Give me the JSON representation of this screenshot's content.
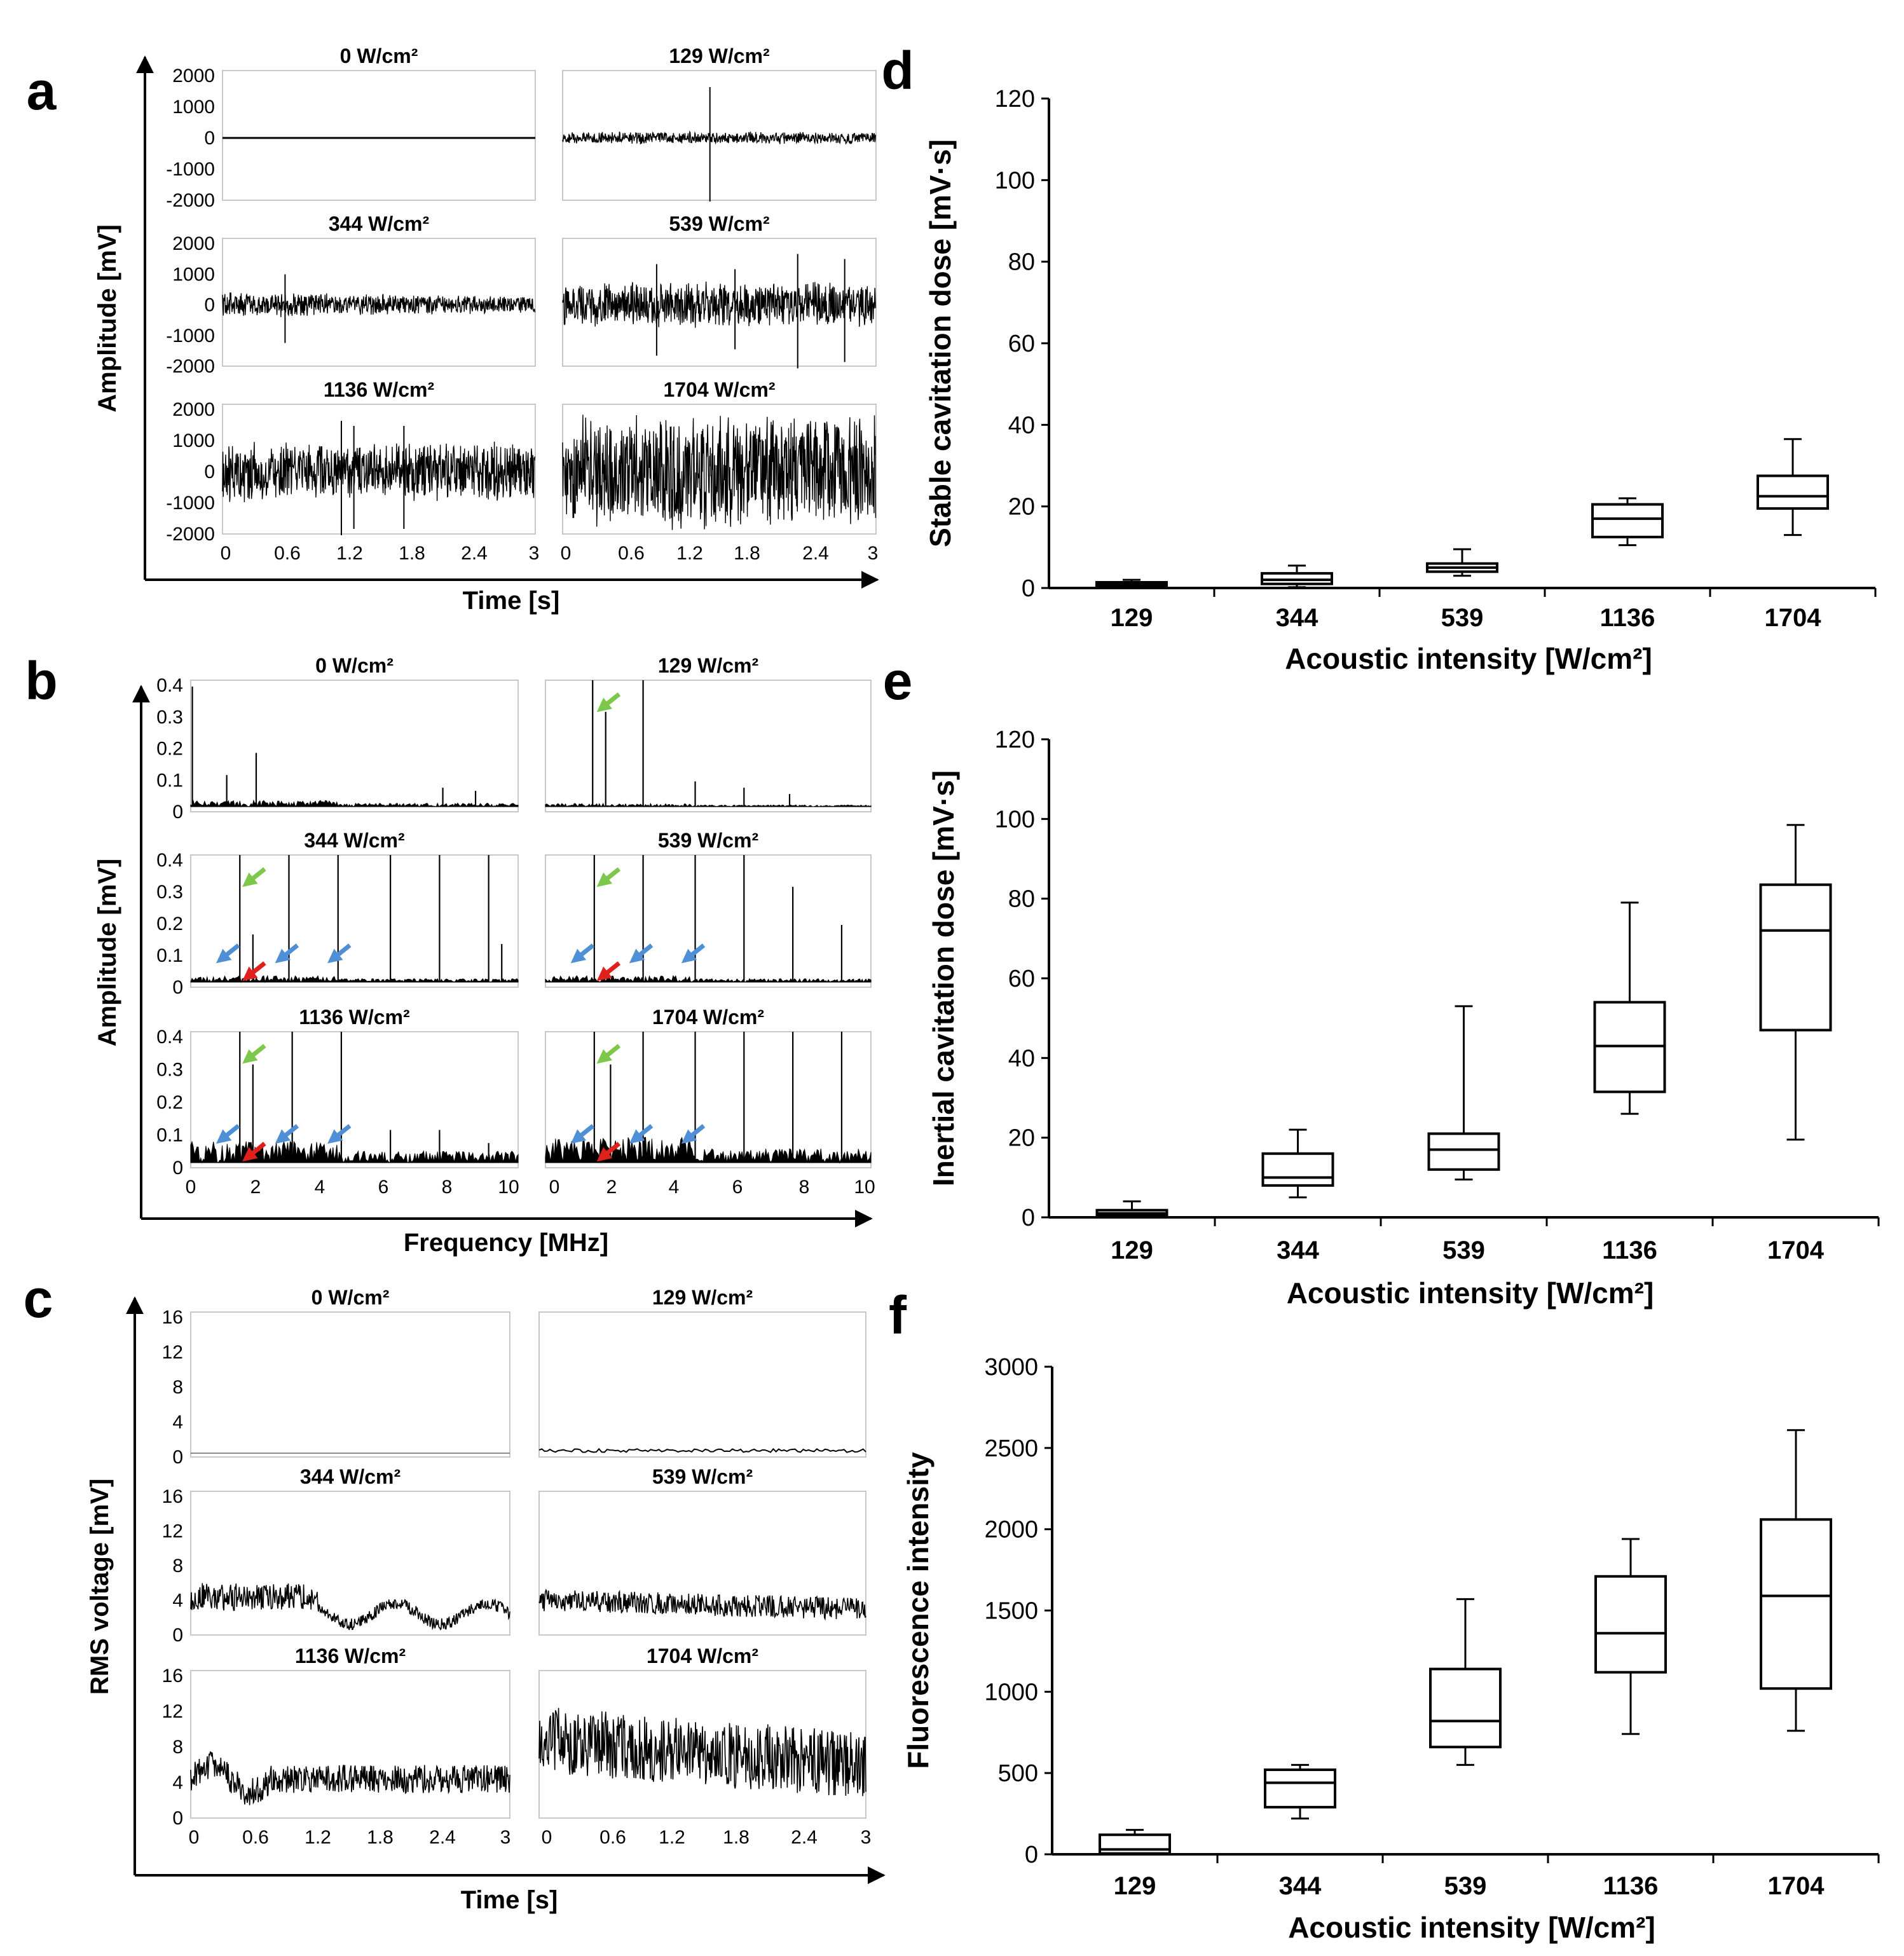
{
  "panels": {
    "a": {
      "letter": "a",
      "ylabel": "Amplitude [mV]",
      "xlabel": "Time [s]",
      "yticks": [
        "2000",
        "1000",
        "0",
        "-1000",
        "-2000"
      ],
      "xticks": [
        "0",
        "0.6",
        "1.2",
        "1.8",
        "2.4",
        "3"
      ],
      "subplots": [
        {
          "title": "0 W/cm²"
        },
        {
          "title": "129 W/cm²"
        },
        {
          "title": "344 W/cm²"
        },
        {
          "title": "539 W/cm²"
        },
        {
          "title": "1136 W/cm²"
        },
        {
          "title": "1704 W/cm²"
        }
      ]
    },
    "b": {
      "letter": "b",
      "ylabel": "Amplitude [mV]",
      "xlabel": "Frequency [MHz]",
      "yticks": [
        "0.4",
        "0.3",
        "0.2",
        "0.1",
        "0"
      ],
      "xticks": [
        "0",
        "2",
        "4",
        "6",
        "8",
        "10"
      ],
      "subplots": [
        {
          "title": "0 W/cm²"
        },
        {
          "title": "129 W/cm²"
        },
        {
          "title": "344 W/cm²"
        },
        {
          "title": "539 W/cm²"
        },
        {
          "title": "1136 W/cm²"
        },
        {
          "title": "1704 W/cm²"
        }
      ],
      "arrow_colors": {
        "green": "#7dc84a",
        "blue": "#4f8fd6",
        "red": "#e0201b"
      }
    },
    "c": {
      "letter": "c",
      "ylabel": "RMS voltage [mV]",
      "xlabel": "Time [s]",
      "yticks": [
        "16",
        "12",
        "8",
        "4",
        "0"
      ],
      "xticks": [
        "0",
        "0.6",
        "1.2",
        "1.8",
        "2.4",
        "3"
      ],
      "subplots": [
        {
          "title": "0 W/cm²"
        },
        {
          "title": "129 W/cm²"
        },
        {
          "title": "344 W/cm²"
        },
        {
          "title": "539 W/cm²"
        },
        {
          "title": "1136 W/cm²"
        },
        {
          "title": "1704 W/cm²"
        }
      ]
    },
    "d": {
      "letter": "d"
    },
    "e": {
      "letter": "e"
    },
    "f": {
      "letter": "f"
    }
  },
  "chart_data": [
    {
      "panel": "d",
      "type": "box",
      "title": "",
      "xlabel": "Acoustic intensity [W/cm²]",
      "ylabel": "Stable cavitation dose [mV·s]",
      "ylim": [
        0,
        120
      ],
      "yticks": [
        0,
        20,
        40,
        60,
        80,
        100,
        120
      ],
      "categories": [
        "129",
        "344",
        "539",
        "1136",
        "1704"
      ],
      "boxes": [
        {
          "min": 0.3,
          "q1": 0.6,
          "median": 1.0,
          "q3": 1.4,
          "max": 2.0
        },
        {
          "min": 0.2,
          "q1": 1.0,
          "median": 2.0,
          "q3": 3.6,
          "max": 5.5
        },
        {
          "min": 3.0,
          "q1": 4.0,
          "median": 5.0,
          "q3": 6.0,
          "max": 9.5
        },
        {
          "min": 10.5,
          "q1": 12.5,
          "median": 17.0,
          "q3": 20.5,
          "max": 22.0
        },
        {
          "min": 13.0,
          "q1": 19.5,
          "median": 22.5,
          "q3": 27.5,
          "max": 36.5
        }
      ]
    },
    {
      "panel": "e",
      "type": "box",
      "title": "",
      "xlabel": "Acoustic intensity [W/cm²]",
      "ylabel": "Inertial cavitation dose [mV·s]",
      "ylim": [
        0,
        120
      ],
      "yticks": [
        0,
        20,
        40,
        60,
        80,
        100,
        120
      ],
      "categories": [
        "129",
        "344",
        "539",
        "1136",
        "1704"
      ],
      "boxes": [
        {
          "min": 0.3,
          "q1": 0.6,
          "median": 1.0,
          "q3": 1.8,
          "max": 4.0
        },
        {
          "min": 5.0,
          "q1": 8.0,
          "median": 10.0,
          "q3": 16.0,
          "max": 22.0
        },
        {
          "min": 9.5,
          "q1": 12.0,
          "median": 17.0,
          "q3": 21.0,
          "max": 53.0
        },
        {
          "min": 26.0,
          "q1": 31.5,
          "median": 43.0,
          "q3": 54.0,
          "max": 79.0
        },
        {
          "min": 19.5,
          "q1": 47.0,
          "median": 72.0,
          "q3": 83.5,
          "max": 98.5
        }
      ]
    },
    {
      "panel": "f",
      "type": "box",
      "title": "",
      "xlabel": "Acoustic intensity [W/cm²]",
      "ylabel": "Fluorescence intensity",
      "ylim": [
        0,
        3000
      ],
      "yticks": [
        0,
        500,
        1000,
        1500,
        2000,
        2500,
        3000
      ],
      "categories": [
        "129",
        "344",
        "539",
        "1136",
        "1704"
      ],
      "boxes": [
        {
          "min": 0,
          "q1": 5,
          "median": 30,
          "q3": 120,
          "max": 150
        },
        {
          "min": 220,
          "q1": 290,
          "median": 440,
          "q3": 520,
          "max": 550
        },
        {
          "min": 550,
          "q1": 660,
          "median": 820,
          "q3": 1140,
          "max": 1570
        },
        {
          "min": 740,
          "q1": 1120,
          "median": 1360,
          "q3": 1710,
          "max": 1940
        },
        {
          "min": 760,
          "q1": 1020,
          "median": 1590,
          "q3": 2060,
          "max": 2610
        }
      ]
    }
  ]
}
